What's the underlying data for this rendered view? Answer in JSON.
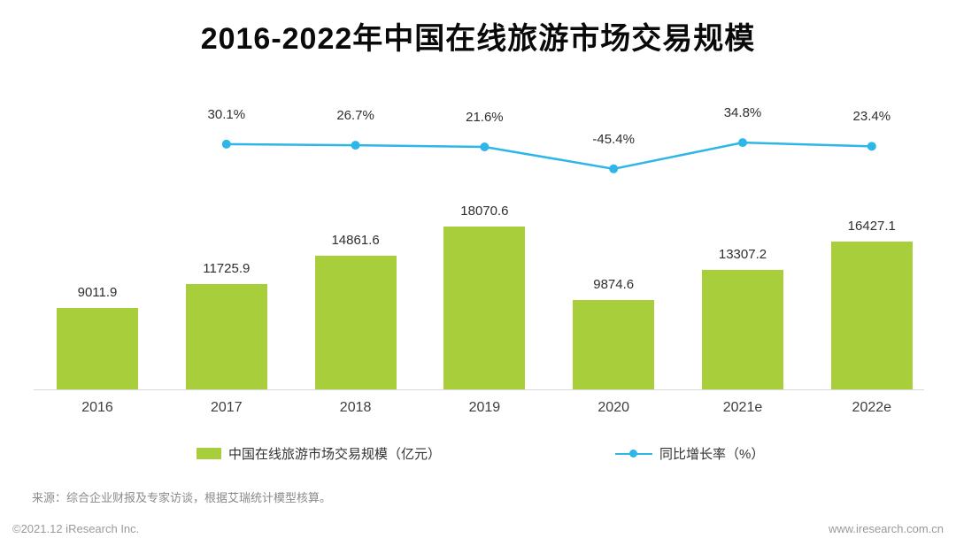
{
  "title": "2016-2022年中国在线旅游市场交易规模",
  "chart_data": {
    "type": "bar+line",
    "title": "2016-2022年中国在线旅游市场交易规模",
    "categories": [
      "2016",
      "2017",
      "2018",
      "2019",
      "2020",
      "2021e",
      "2022e"
    ],
    "series": [
      {
        "name": "中国在线旅游市场交易规模（亿元）",
        "type": "bar",
        "color": "#a8ce3b",
        "values": [
          9011.9,
          11725.9,
          14861.6,
          18070.6,
          9874.6,
          13307.2,
          16427.1
        ]
      },
      {
        "name": "同比增长率（%）",
        "type": "line",
        "color": "#2eb6e8",
        "values": [
          null,
          30.1,
          26.7,
          21.6,
          -45.4,
          34.8,
          23.4
        ]
      }
    ],
    "value_labels": [
      "9011.9",
      "11725.9",
      "14861.6",
      "18070.6",
      "9874.6",
      "13307.2",
      "16427.1"
    ],
    "growth_labels": [
      null,
      "30.1%",
      "26.7%",
      "21.6%",
      "-45.4%",
      "34.8%",
      "23.4%"
    ],
    "legend_position": "bottom",
    "grid": false,
    "ylim": [
      0,
      18070.6
    ]
  },
  "legend": {
    "bar_label": "中国在线旅游市场交易规模（亿元）",
    "line_label": "同比增长率（%）"
  },
  "source": "来源：综合企业财报及专家访谈，根据艾瑞统计模型核算。",
  "footer": {
    "left": "©2021.12 iResearch Inc.",
    "right": "www.iresearch.com.cn"
  },
  "colors": {
    "bar": "#a8ce3b",
    "line": "#2eb6e8",
    "axis": "#d9d9d9",
    "title": "#0a0a0a",
    "label": "#2e2e2e",
    "muted": "#8a8a8a"
  }
}
